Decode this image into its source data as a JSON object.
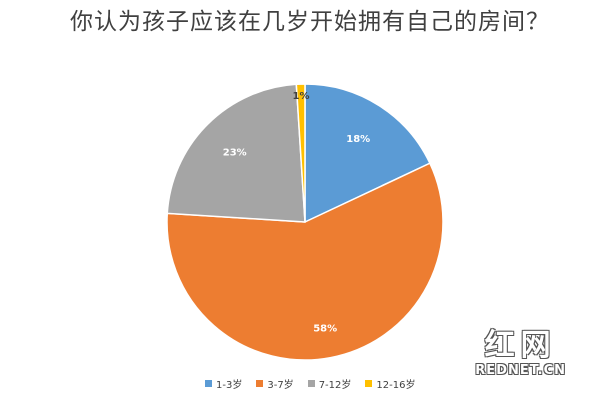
{
  "chart_data": {
    "type": "pie",
    "title": "你认为孩子应该在几岁开始拥有自己的房间？",
    "slices": [
      {
        "name": "1-3岁",
        "value": 18,
        "label": "18%",
        "color": "#5b9bd5",
        "label_color": "#ffffff"
      },
      {
        "name": "3-7岁",
        "value": 58,
        "label": "58%",
        "color": "#ed7d31",
        "label_color": "#ffffff"
      },
      {
        "name": "7-12岁",
        "value": 23,
        "label": "23%",
        "color": "#a5a5a5",
        "label_color": "#ffffff"
      },
      {
        "name": "12-16岁",
        "value": 1,
        "label": "1%",
        "color": "#ffc000",
        "label_color": "#404040"
      }
    ],
    "legend_position": "bottom"
  },
  "watermark": {
    "logo_text": "红网",
    "site_text": "REDNET.CN"
  }
}
